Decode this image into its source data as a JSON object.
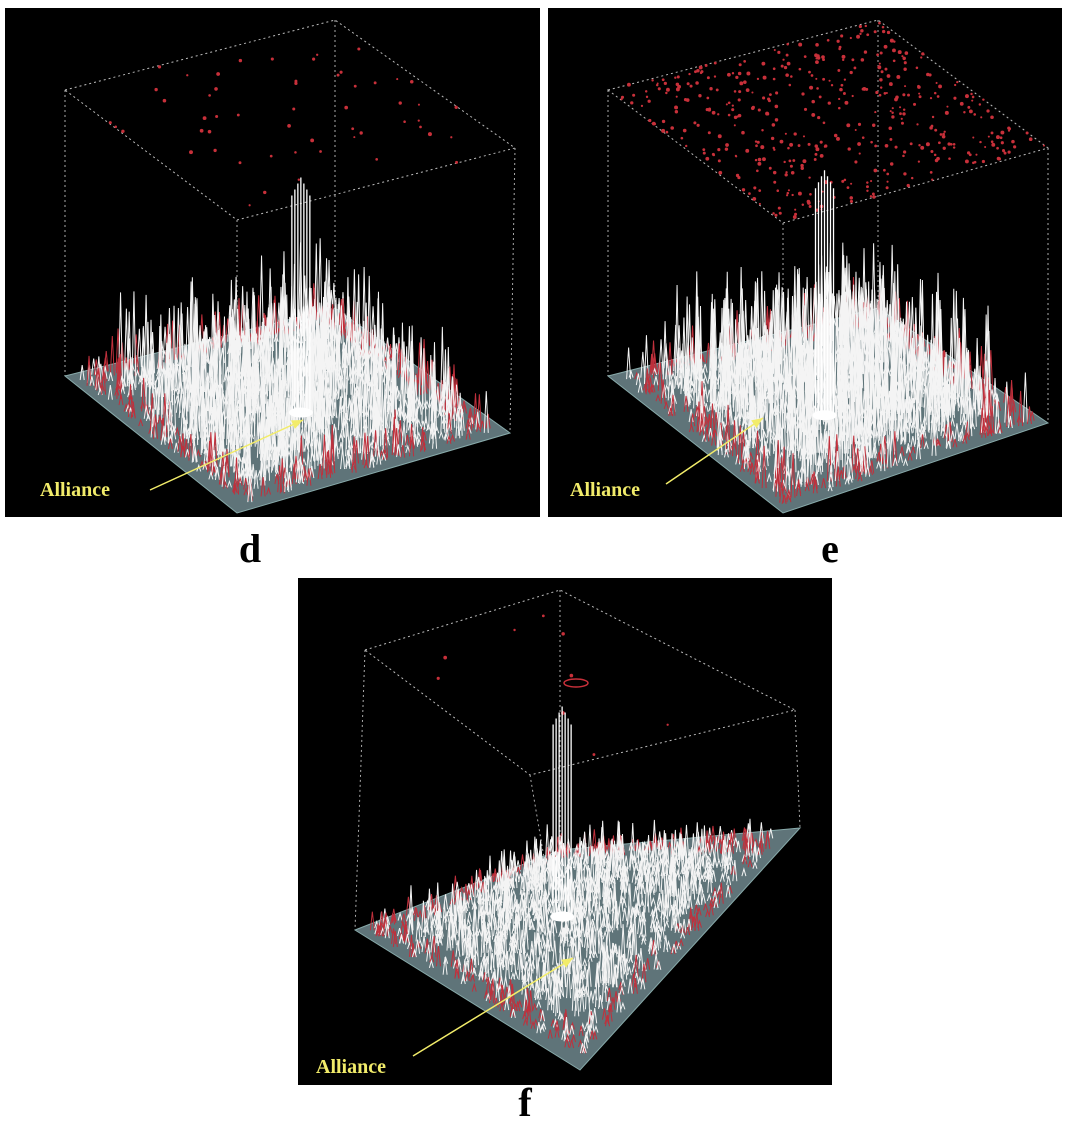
{
  "panels": [
    {
      "label": "d",
      "annotation": "Alliance"
    },
    {
      "label": "e",
      "annotation": "Alliance"
    },
    {
      "label": "f",
      "annotation": "Alliance"
    }
  ]
}
